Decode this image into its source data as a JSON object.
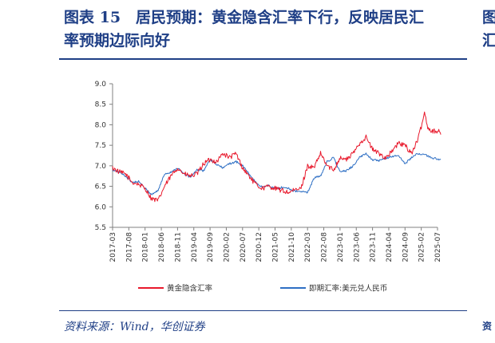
{
  "header": {
    "title_line1": "图表 15　居民预期：黄金隐含汇率下行，反映居民汇",
    "title_line2": "率预期边际向好",
    "edge_top": "图",
    "edge_mid": "汇",
    "edge_bot": "资"
  },
  "footer": {
    "source": "资料来源：Wind，华创证券"
  },
  "colors": {
    "title": "#1f3f86",
    "gold_series": "#e8192c",
    "forward_series": "#2e6fc4",
    "axis": "#808080"
  },
  "chart_data": {
    "type": "line",
    "title": "",
    "xlabel": "",
    "ylabel": "",
    "ylim": [
      5.5,
      9.0
    ],
    "yticks": [
      "9.0",
      "8.5",
      "8.0",
      "7.5",
      "7.0",
      "6.5",
      "6.0",
      "5.5"
    ],
    "xticks": [
      "2017-03",
      "2017-08",
      "2018-01",
      "2018-06",
      "2018-11",
      "2019-04",
      "2019-09",
      "2020-02",
      "2020-07",
      "2020-12",
      "2021-05",
      "2021-10",
      "2022-03",
      "2022-08",
      "2023-01",
      "2023-06",
      "2023-11",
      "2024-04",
      "2024-09",
      "2025-02",
      "2025-07"
    ],
    "grid": false,
    "legend_position": "bottom",
    "series": [
      {
        "name": "黄金隐含汇率",
        "color": "#e8192c",
        "x": [
          "2017-03",
          "2017-05",
          "2017-07",
          "2017-09",
          "2017-11",
          "2018-01",
          "2018-03",
          "2018-05",
          "2018-07",
          "2018-09",
          "2018-11",
          "2019-01",
          "2019-03",
          "2019-05",
          "2019-07",
          "2019-09",
          "2019-11",
          "2020-01",
          "2020-03",
          "2020-05",
          "2020-07",
          "2020-09",
          "2020-11",
          "2021-01",
          "2021-03",
          "2021-05",
          "2021-07",
          "2021-09",
          "2021-11",
          "2022-01",
          "2022-03",
          "2022-05",
          "2022-07",
          "2022-09",
          "2022-11",
          "2023-01",
          "2023-03",
          "2023-05",
          "2023-07",
          "2023-09",
          "2023-11",
          "2024-01",
          "2024-03",
          "2024-05",
          "2024-07",
          "2024-09",
          "2024-11",
          "2025-01",
          "2025-02",
          "2025-03",
          "2025-04",
          "2025-05",
          "2025-07",
          "2025-08"
        ],
        "values": [
          6.95,
          6.85,
          6.8,
          6.6,
          6.55,
          6.45,
          6.2,
          6.15,
          6.5,
          6.75,
          6.95,
          6.8,
          6.75,
          6.8,
          7.05,
          7.15,
          7.1,
          7.3,
          7.2,
          7.3,
          6.95,
          6.75,
          6.55,
          6.45,
          6.5,
          6.45,
          6.4,
          6.35,
          6.4,
          6.45,
          7.0,
          6.95,
          7.3,
          7.0,
          6.9,
          7.2,
          7.15,
          7.3,
          7.55,
          7.7,
          7.4,
          7.3,
          7.2,
          7.35,
          7.55,
          7.5,
          7.3,
          7.65,
          7.95,
          8.3,
          7.95,
          7.85,
          7.85,
          7.8
        ]
      },
      {
        "name": "即期汇率:美元兑人民币",
        "color": "#2e6fc4",
        "x": [
          "2017-03",
          "2017-05",
          "2017-07",
          "2017-09",
          "2017-11",
          "2018-01",
          "2018-03",
          "2018-05",
          "2018-07",
          "2018-09",
          "2018-11",
          "2019-01",
          "2019-03",
          "2019-05",
          "2019-07",
          "2019-09",
          "2019-11",
          "2020-01",
          "2020-03",
          "2020-05",
          "2020-07",
          "2020-09",
          "2020-11",
          "2021-01",
          "2021-03",
          "2021-05",
          "2021-07",
          "2021-09",
          "2021-11",
          "2022-01",
          "2022-03",
          "2022-05",
          "2022-07",
          "2022-09",
          "2022-11",
          "2023-01",
          "2023-03",
          "2023-05",
          "2023-07",
          "2023-09",
          "2023-11",
          "2024-01",
          "2024-03",
          "2024-05",
          "2024-07",
          "2024-09",
          "2024-11",
          "2025-01",
          "2025-03",
          "2025-05",
          "2025-07",
          "2025-08"
        ],
        "values": [
          6.89,
          6.85,
          6.75,
          6.6,
          6.62,
          6.45,
          6.3,
          6.4,
          6.8,
          6.85,
          6.95,
          6.8,
          6.72,
          6.9,
          6.88,
          7.15,
          7.03,
          6.95,
          7.05,
          7.1,
          7.0,
          6.8,
          6.6,
          6.48,
          6.52,
          6.45,
          6.47,
          6.46,
          6.38,
          6.37,
          6.35,
          6.7,
          6.75,
          7.1,
          7.2,
          6.85,
          6.88,
          7.0,
          7.2,
          7.3,
          7.15,
          7.12,
          7.18,
          7.23,
          7.25,
          7.05,
          7.2,
          7.3,
          7.27,
          7.2,
          7.17,
          7.15
        ]
      }
    ]
  }
}
